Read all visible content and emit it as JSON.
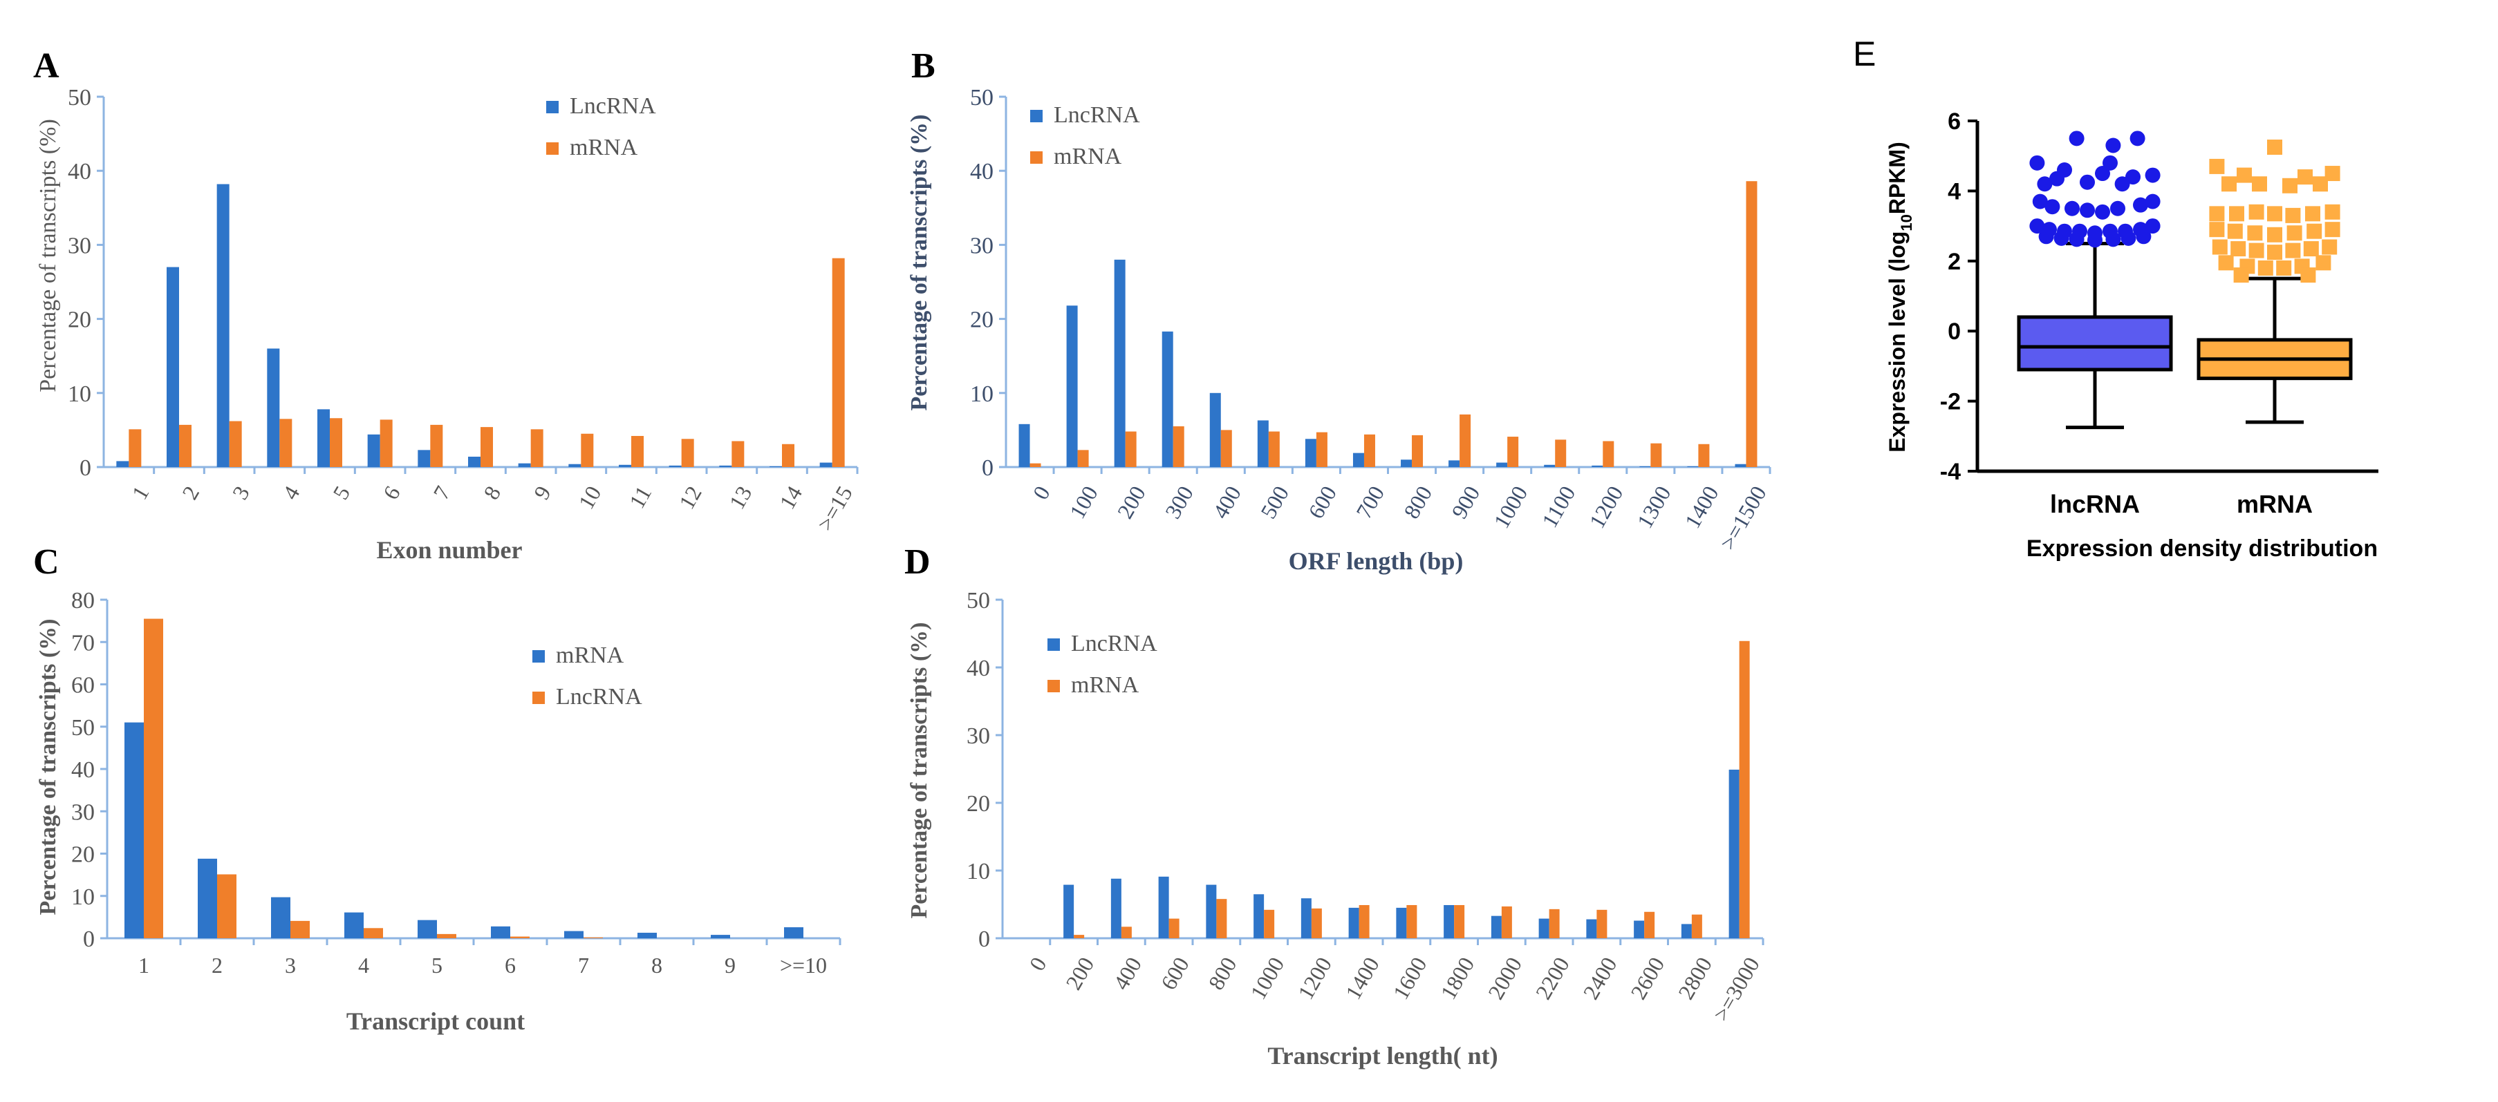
{
  "colors": {
    "lnc": "#2E75C9",
    "mrna": "#F07F2A",
    "axis": "#8DB4E2",
    "text": "#555555",
    "boxLnc": "#5B5BF0",
    "boxMrna": "#FFAD42",
    "dotLnc": "#1A1AE6",
    "dotMrna": "#FFAD42"
  },
  "chart_data": [
    {
      "id": "A",
      "panel_label": "A",
      "type": "bar",
      "categories": [
        "1",
        "2",
        "3",
        "4",
        "5",
        "6",
        "7",
        "8",
        "9",
        "10",
        "11",
        "12",
        "13",
        "14",
        ">=15"
      ],
      "series": [
        {
          "name": "LncRNA",
          "values": [
            0.8,
            27,
            38.2,
            16,
            7.8,
            4.4,
            2.3,
            1.4,
            0.5,
            0.4,
            0.3,
            0.2,
            0.2,
            0.1,
            0.6
          ]
        },
        {
          "name": "mRNA",
          "values": [
            5.1,
            5.7,
            6.2,
            6.5,
            6.6,
            6.4,
            5.7,
            5.4,
            5.1,
            4.5,
            4.2,
            3.8,
            3.5,
            3.1,
            28.2
          ]
        }
      ],
      "legend": [
        "LncRNA",
        "mRNA"
      ],
      "ylim": [
        0,
        50
      ],
      "yticks": [
        "0",
        "10",
        "20",
        "30",
        "40",
        "50"
      ],
      "xlabel": "Exon number",
      "ylabel": "Percentage of transcripts (%)"
    },
    {
      "id": "B",
      "panel_label": "B",
      "type": "bar",
      "categories": [
        "0",
        "100",
        "200",
        "300",
        "400",
        "500",
        "600",
        "700",
        "800",
        "900",
        "1000",
        "1100",
        "1200",
        "1300",
        "1400",
        ">=1500"
      ],
      "series": [
        {
          "name": "LncRNA",
          "values": [
            5.8,
            21.8,
            28,
            18.3,
            10,
            6.3,
            3.8,
            1.9,
            1,
            0.9,
            0.6,
            0.3,
            0.2,
            0.1,
            0.1,
            0.4
          ]
        },
        {
          "name": "mRNA",
          "values": [
            0.5,
            2.3,
            4.8,
            5.5,
            5,
            4.8,
            4.7,
            4.4,
            4.3,
            7.1,
            4.1,
            3.7,
            3.5,
            3.2,
            3.1,
            38.6
          ]
        }
      ],
      "legend": [
        "LncRNA",
        "mRNA"
      ],
      "ylim": [
        0,
        50
      ],
      "yticks": [
        "0",
        "10",
        "20",
        "30",
        "40",
        "50"
      ],
      "xlabel": "ORF  length (bp)",
      "ylabel": "Percentage of transcripts (%)"
    },
    {
      "id": "C",
      "panel_label": "C",
      "type": "bar",
      "categories": [
        "1",
        "2",
        "3",
        "4",
        "5",
        "6",
        "7",
        "8",
        "9",
        ">=10"
      ],
      "series": [
        {
          "name": "mRNA",
          "values": [
            51,
            18.8,
            9.7,
            6.1,
            4.3,
            2.8,
            1.7,
            1.3,
            0.8,
            2.6
          ]
        },
        {
          "name": "LncRNA",
          "values": [
            75.5,
            15.1,
            4.1,
            2.4,
            1,
            0.4,
            0.2,
            0,
            0,
            0
          ]
        }
      ],
      "legend": [
        "mRNA",
        "LncRNA"
      ],
      "ylim": [
        0,
        80
      ],
      "yticks": [
        "0",
        "10",
        "20",
        "30",
        "40",
        "50",
        "60",
        "70",
        "80"
      ],
      "xlabel": "Transcript  count",
      "ylabel": "Percentage of transcripts (%)"
    },
    {
      "id": "D",
      "panel_label": "D",
      "type": "bar",
      "categories": [
        "0",
        "200",
        "400",
        "600",
        "800",
        "1000",
        "1200",
        "1400",
        "1600",
        "1800",
        "2000",
        "2200",
        "2400",
        "2600",
        "2800",
        ">=3000"
      ],
      "series": [
        {
          "name": "LncRNA",
          "values": [
            0,
            7.9,
            8.8,
            9.1,
            7.9,
            6.5,
            5.9,
            4.5,
            4.5,
            4.9,
            3.3,
            2.9,
            2.8,
            2.6,
            2.1,
            24.9
          ]
        },
        {
          "name": "mRNA",
          "values": [
            0,
            0.5,
            1.7,
            2.9,
            5.8,
            4.2,
            4.4,
            4.9,
            4.9,
            4.9,
            4.7,
            4.3,
            4.2,
            3.9,
            3.5,
            43.9
          ]
        }
      ],
      "legend": [
        "LncRNA",
        "mRNA"
      ],
      "ylim": [
        0,
        50
      ],
      "yticks": [
        "0",
        "10",
        "20",
        "30",
        "40",
        "50"
      ],
      "xlabel": "Transcript length( nt)",
      "ylabel": "Percentage of transcripts (%)"
    },
    {
      "id": "E",
      "panel_label": "E",
      "type": "box",
      "categories": [
        "lncRNA",
        "mRNA"
      ],
      "boxes": [
        {
          "name": "lncRNA",
          "min": -2.75,
          "q1": -1.1,
          "median": -0.45,
          "q3": 0.4,
          "whisker_high": 2.5,
          "outliers": [
            [
              -0.38,
              4.8
            ],
            [
              -0.2,
              4.6
            ],
            [
              0.05,
              4.5
            ],
            [
              -0.12,
              5.5
            ],
            [
              0.12,
              5.3
            ],
            [
              0.28,
              5.5
            ],
            [
              0.1,
              4.8
            ],
            [
              0.38,
              4.45
            ],
            [
              -0.33,
              4.2
            ],
            [
              -0.25,
              4.35
            ],
            [
              0.25,
              4.4
            ],
            [
              -0.05,
              4.25
            ],
            [
              0.18,
              4.2
            ],
            [
              -0.36,
              3.7
            ],
            [
              0.38,
              3.7
            ],
            [
              -0.28,
              3.55
            ],
            [
              0.3,
              3.6
            ],
            [
              -0.15,
              3.5
            ],
            [
              0.15,
              3.5
            ],
            [
              -0.05,
              3.45
            ],
            [
              0.05,
              3.4
            ],
            [
              -0.38,
              3.0
            ],
            [
              -0.3,
              2.9
            ],
            [
              -0.2,
              2.85
            ],
            [
              -0.1,
              2.85
            ],
            [
              0.0,
              2.8
            ],
            [
              0.1,
              2.85
            ],
            [
              0.2,
              2.85
            ],
            [
              0.3,
              2.9
            ],
            [
              0.38,
              3.0
            ],
            [
              -0.32,
              2.7
            ],
            [
              -0.22,
              2.65
            ],
            [
              -0.12,
              2.62
            ],
            [
              0.0,
              2.6
            ],
            [
              0.12,
              2.62
            ],
            [
              0.22,
              2.65
            ],
            [
              0.32,
              2.7
            ]
          ]
        },
        {
          "name": "mRNA",
          "min": -2.6,
          "q1": -1.35,
          "median": -0.8,
          "q3": -0.25,
          "whisker_high": 1.5,
          "outliers": [
            [
              -0.38,
              4.7
            ],
            [
              0.0,
              5.25
            ],
            [
              -0.2,
              4.45
            ],
            [
              0.2,
              4.4
            ],
            [
              0.38,
              4.5
            ],
            [
              -0.3,
              4.2
            ],
            [
              -0.1,
              4.2
            ],
            [
              0.1,
              4.15
            ],
            [
              0.3,
              4.2
            ],
            [
              -0.38,
              3.35
            ],
            [
              -0.25,
              3.35
            ],
            [
              -0.12,
              3.4
            ],
            [
              0.0,
              3.35
            ],
            [
              0.12,
              3.3
            ],
            [
              0.25,
              3.35
            ],
            [
              0.38,
              3.4
            ],
            [
              -0.38,
              2.9
            ],
            [
              -0.26,
              2.85
            ],
            [
              -0.13,
              2.8
            ],
            [
              0.0,
              2.75
            ],
            [
              0.13,
              2.8
            ],
            [
              0.26,
              2.85
            ],
            [
              0.38,
              2.9
            ],
            [
              -0.36,
              2.4
            ],
            [
              -0.24,
              2.35
            ],
            [
              -0.12,
              2.3
            ],
            [
              0.0,
              2.25
            ],
            [
              0.12,
              2.3
            ],
            [
              0.24,
              2.35
            ],
            [
              0.36,
              2.4
            ],
            [
              -0.32,
              1.95
            ],
            [
              -0.18,
              1.85
            ],
            [
              -0.06,
              1.8
            ],
            [
              0.06,
              1.8
            ],
            [
              0.18,
              1.85
            ],
            [
              0.32,
              1.95
            ],
            [
              -0.22,
              1.6
            ],
            [
              0.22,
              1.6
            ]
          ]
        }
      ],
      "ylim": [
        -4,
        6
      ],
      "yticks": [
        "-4",
        "-2",
        "0",
        "2",
        "4",
        "6"
      ],
      "ylabel_main": "Expression level (log",
      "ylabel_sub": "10",
      "ylabel_tail": "RPKM)",
      "xlabel": "Expression density distribution"
    }
  ]
}
